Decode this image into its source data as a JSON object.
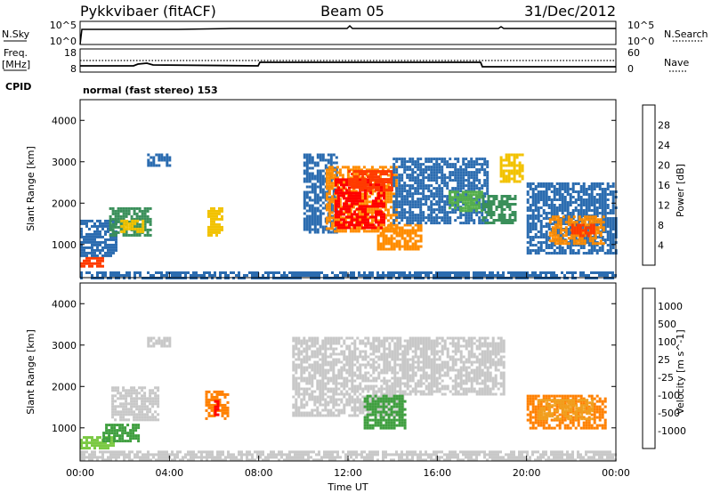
{
  "header": {
    "title_left": "Pykkvibaer (fitACF)",
    "title_center": "Beam 05",
    "title_right": "31/Dec/2012"
  },
  "strip": {
    "nsky_label": "N.Sky",
    "nsky_ticks": [
      "10^5",
      "10^0"
    ],
    "nsearch_label": "N.Search",
    "nsearch_ticks": [
      "10^5",
      "10^0"
    ],
    "freq_label_1": "Freq.",
    "freq_label_2": "[MHz]",
    "freq_ticks": [
      "18",
      "8"
    ],
    "nave_label": "Nave",
    "nave_ticks": [
      "60",
      "0"
    ],
    "cpid_label": "CPID",
    "cpid_value": "normal (fast stereo) 153"
  },
  "colors": {
    "power": [
      "#0000ff",
      "#2b6cb0",
      "#3a8f5a",
      "#56b04a",
      "#f2c200",
      "#ff8c00",
      "#ff3b00",
      "#ff0000"
    ],
    "velocity": [
      "#2040b0",
      "#2f7f4f",
      "#3f9f3f",
      "#7ac943",
      "#c8c8c8",
      "#f0a020",
      "#ff8000",
      "#ff4000",
      "#ff0000"
    ]
  },
  "chart_data": [
    {
      "type": "heatmap",
      "panel": "power",
      "ylabel": "Slant Range [km]",
      "yticks": [
        1000,
        2000,
        3000,
        4000
      ],
      "ylim": [
        200,
        4500
      ],
      "xlim": [
        0,
        24
      ],
      "colorbar_label": "Power [dB]",
      "colorbar_ticks": [
        "4",
        "8",
        "12",
        "16",
        "20",
        "24",
        "28"
      ],
      "regions": [
        {
          "x": [
            0.0,
            1.0
          ],
          "y": [
            500,
            700
          ],
          "level": 6
        },
        {
          "x": [
            0.0,
            1.6
          ],
          "y": [
            700,
            1600
          ],
          "level": 1
        },
        {
          "x": [
            1.3,
            3.2
          ],
          "y": [
            1200,
            1900
          ],
          "level": 2
        },
        {
          "x": [
            1.8,
            2.8
          ],
          "y": [
            1300,
            1600
          ],
          "level": 4
        },
        {
          "x": [
            3.0,
            4.0
          ],
          "y": [
            2900,
            3200
          ],
          "level": 1
        },
        {
          "x": [
            5.7,
            6.4
          ],
          "y": [
            1200,
            1900
          ],
          "level": 4
        },
        {
          "x": [
            10.0,
            11.5
          ],
          "y": [
            1300,
            3200
          ],
          "level": 1
        },
        {
          "x": [
            11.0,
            14.2
          ],
          "y": [
            1300,
            2900
          ],
          "level": 5
        },
        {
          "x": [
            11.4,
            13.6
          ],
          "y": [
            1400,
            2600
          ],
          "level": 7
        },
        {
          "x": [
            12.0,
            14.0
          ],
          "y": [
            2300,
            2800
          ],
          "level": 6
        },
        {
          "x": [
            13.3,
            15.3
          ],
          "y": [
            900,
            1500
          ],
          "level": 5
        },
        {
          "x": [
            14.0,
            18.2
          ],
          "y": [
            1500,
            3100
          ],
          "level": 1
        },
        {
          "x": [
            16.5,
            18.0
          ],
          "y": [
            1800,
            2300
          ],
          "level": 3
        },
        {
          "x": [
            18.0,
            19.5
          ],
          "y": [
            1500,
            2200
          ],
          "level": 2
        },
        {
          "x": [
            18.8,
            19.8
          ],
          "y": [
            2500,
            3200
          ],
          "level": 4
        },
        {
          "x": [
            20.0,
            24.0
          ],
          "y": [
            800,
            2500
          ],
          "level": 1
        },
        {
          "x": [
            21.0,
            23.5
          ],
          "y": [
            1000,
            1700
          ],
          "level": 5
        },
        {
          "x": [
            22.0,
            23.0
          ],
          "y": [
            1200,
            1500
          ],
          "level": 6
        },
        {
          "x": [
            0.0,
            24.0
          ],
          "y": [
            200,
            350
          ],
          "level": 1
        }
      ]
    },
    {
      "type": "heatmap",
      "panel": "velocity",
      "ylabel": "Slant Range [km]",
      "yticks": [
        1000,
        2000,
        3000,
        4000
      ],
      "ylim": [
        200,
        4500
      ],
      "xlim": [
        0,
        24
      ],
      "xlabel": "Time UT",
      "xticks": [
        "00:00",
        "04:00",
        "08:00",
        "12:00",
        "16:00",
        "20:00",
        "00:00"
      ],
      "colorbar_label": "Velocity [m s^-1]",
      "colorbar_ticks": [
        "1000",
        "500",
        "100",
        "25",
        "-25",
        "-100",
        "-500",
        "-1000"
      ],
      "regions": [
        {
          "x": [
            0.0,
            1.5
          ],
          "y": [
            500,
            800
          ],
          "level": 3
        },
        {
          "x": [
            1.0,
            2.6
          ],
          "y": [
            700,
            1100
          ],
          "level": 2
        },
        {
          "x": [
            1.4,
            3.5
          ],
          "y": [
            1200,
            2000
          ],
          "level": 4
        },
        {
          "x": [
            3.0,
            4.0
          ],
          "y": [
            3000,
            3200
          ],
          "level": 4
        },
        {
          "x": [
            5.6,
            6.6
          ],
          "y": [
            1200,
            1900
          ],
          "level": 6
        },
        {
          "x": [
            6.0,
            6.2
          ],
          "y": [
            1300,
            1800
          ],
          "level": 8
        },
        {
          "x": [
            9.5,
            14.5
          ],
          "y": [
            1300,
            3200
          ],
          "level": 4
        },
        {
          "x": [
            12.7,
            14.6
          ],
          "y": [
            1000,
            1800
          ],
          "level": 2
        },
        {
          "x": [
            14.5,
            19.0
          ],
          "y": [
            1800,
            3200
          ],
          "level": 4
        },
        {
          "x": [
            20.0,
            23.5
          ],
          "y": [
            1000,
            1800
          ],
          "level": 6
        },
        {
          "x": [
            20.5,
            23.0
          ],
          "y": [
            1200,
            1700
          ],
          "level": 5
        },
        {
          "x": [
            0.0,
            24.0
          ],
          "y": [
            200,
            450
          ],
          "level": 4
        }
      ]
    }
  ]
}
